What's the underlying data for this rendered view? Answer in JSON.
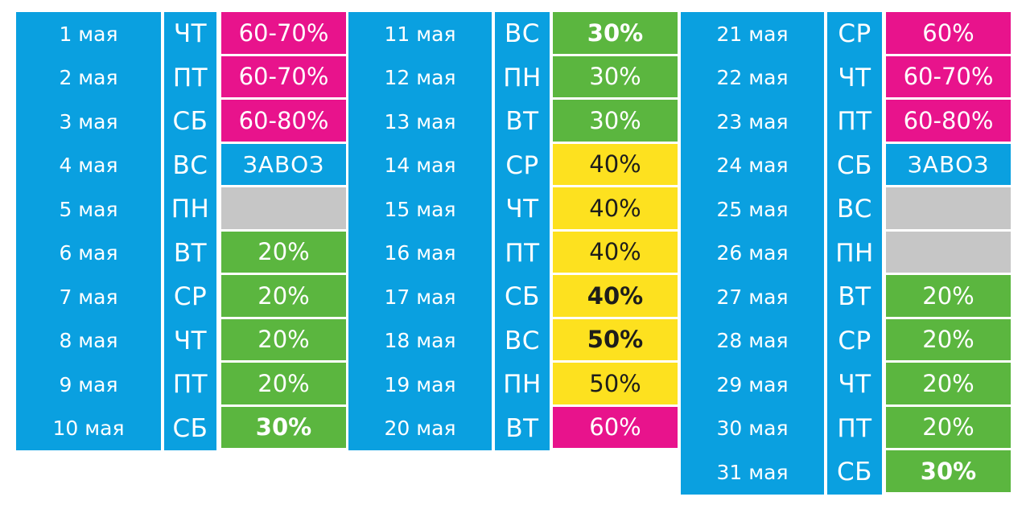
{
  "columns": [
    {
      "rows": [
        {
          "date": "1 мая",
          "day": "ЧТ",
          "pct": "60-70%",
          "color": "pink"
        },
        {
          "date": "2 мая",
          "day": "ПТ",
          "pct": "60-70%",
          "color": "pink"
        },
        {
          "date": "3 мая",
          "day": "СБ",
          "pct": "60-80%",
          "color": "pink"
        },
        {
          "date": "4 мая",
          "day": "ВС",
          "pct": "ЗАВОЗ",
          "color": "blue"
        },
        {
          "date": "5 мая",
          "day": "ПН",
          "pct": "",
          "color": "gray"
        },
        {
          "date": "6 мая",
          "day": "ВТ",
          "pct": "20%",
          "color": "green"
        },
        {
          "date": "7 мая",
          "day": "СР",
          "pct": "20%",
          "color": "green"
        },
        {
          "date": "8 мая",
          "day": "ЧТ",
          "pct": "20%",
          "color": "green"
        },
        {
          "date": "9 мая",
          "day": "ПТ",
          "pct": "20%",
          "color": "green"
        },
        {
          "date": "10 мая",
          "day": "СБ",
          "pct": "30%",
          "color": "green",
          "bold": true
        }
      ]
    },
    {
      "rows": [
        {
          "date": "11 мая",
          "day": "ВС",
          "pct": "30%",
          "color": "green",
          "bold": true
        },
        {
          "date": "12 мая",
          "day": "ПН",
          "pct": "30%",
          "color": "green"
        },
        {
          "date": "13 мая",
          "day": "ВТ",
          "pct": "30%",
          "color": "green"
        },
        {
          "date": "14 мая",
          "day": "СР",
          "pct": "40%",
          "color": "yellow"
        },
        {
          "date": "15 мая",
          "day": "ЧТ",
          "pct": "40%",
          "color": "yellow"
        },
        {
          "date": "16 мая",
          "day": "ПТ",
          "pct": "40%",
          "color": "yellow"
        },
        {
          "date": "17 мая",
          "day": "СБ",
          "pct": "40%",
          "color": "yellow",
          "bold": true
        },
        {
          "date": "18 мая",
          "day": "ВС",
          "pct": "50%",
          "color": "yellow",
          "bold": true
        },
        {
          "date": "19 мая",
          "day": "ПН",
          "pct": "50%",
          "color": "yellow"
        },
        {
          "date": "20 мая",
          "day": "ВТ",
          "pct": "60%",
          "color": "pink"
        }
      ]
    },
    {
      "rows": [
        {
          "date": "21 мая",
          "day": "СР",
          "pct": "60%",
          "color": "pink"
        },
        {
          "date": "22 мая",
          "day": "ЧТ",
          "pct": "60-70%",
          "color": "pink"
        },
        {
          "date": "23 мая",
          "day": "ПТ",
          "pct": "60-80%",
          "color": "pink"
        },
        {
          "date": "24 мая",
          "day": "СБ",
          "pct": "ЗАВОЗ",
          "color": "blue"
        },
        {
          "date": "25 мая",
          "day": "ВС",
          "pct": "",
          "color": "gray"
        },
        {
          "date": "26 мая",
          "day": "ПН",
          "pct": "",
          "color": "gray"
        },
        {
          "date": "27 мая",
          "day": "ВТ",
          "pct": "20%",
          "color": "green"
        },
        {
          "date": "28 мая",
          "day": "СР",
          "pct": "20%",
          "color": "green"
        },
        {
          "date": "29 мая",
          "day": "ЧТ",
          "pct": "20%",
          "color": "green"
        },
        {
          "date": "30 мая",
          "day": "ПТ",
          "pct": "20%",
          "color": "green"
        },
        {
          "date": "31 мая",
          "day": "СБ",
          "pct": "30%",
          "color": "green",
          "bold": true
        }
      ]
    }
  ],
  "colors": {
    "blue": "#0aa0e0",
    "pink": "#e8138c",
    "green": "#5bb63f",
    "yellow": "#fde11f",
    "gray": "#c6c6c6"
  }
}
